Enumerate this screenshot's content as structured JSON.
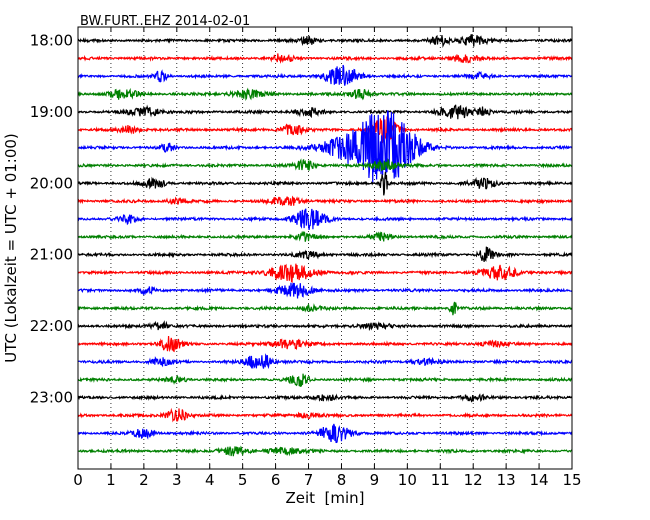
{
  "chart_data": {
    "type": "line",
    "title": "BW.FURT..EHZ 2014-02-01",
    "xlabel": "Zeit  [min]",
    "ylabel": "UTC (Lokalzeit = UTC + 01:00)",
    "xlim": [
      0,
      15
    ],
    "x_ticks": [
      "0",
      "1",
      "2",
      "3",
      "4",
      "5",
      "6",
      "7",
      "8",
      "9",
      "10",
      "11",
      "12",
      "13",
      "14",
      "15"
    ],
    "y_ticks": [
      "18:00",
      "19:00",
      "20:00",
      "21:00",
      "22:00",
      "23:00"
    ],
    "grid": "vertical-dotted",
    "trace_colors": [
      "#000000",
      "#ff0000",
      "#0000ff",
      "#008000"
    ],
    "trace_interval_min": 15,
    "traces": [
      {
        "start": "18:00",
        "bursts": [
          {
            "t": 11.0,
            "a": 0.5,
            "w": 0.3
          },
          {
            "t": 12.0,
            "a": 0.6,
            "w": 0.4
          },
          {
            "t": 7.0,
            "a": 0.4,
            "w": 0.3
          }
        ]
      },
      {
        "start": "18:15",
        "bursts": [
          {
            "t": 6.2,
            "a": 0.5,
            "w": 0.3
          },
          {
            "t": 11.7,
            "a": 0.4,
            "w": 0.4
          }
        ]
      },
      {
        "start": "18:30",
        "bursts": [
          {
            "t": 2.5,
            "a": 0.6,
            "w": 0.2
          },
          {
            "t": 8.0,
            "a": 1.1,
            "w": 0.5
          },
          {
            "t": 12.2,
            "a": 0.3,
            "w": 0.3
          }
        ]
      },
      {
        "start": "18:45",
        "bursts": [
          {
            "t": 1.4,
            "a": 0.6,
            "w": 0.4
          },
          {
            "t": 5.2,
            "a": 0.5,
            "w": 0.5
          },
          {
            "t": 8.6,
            "a": 0.6,
            "w": 0.3
          }
        ]
      },
      {
        "start": "19:00",
        "bursts": [
          {
            "t": 2.0,
            "a": 0.5,
            "w": 0.5
          },
          {
            "t": 7.0,
            "a": 0.4,
            "w": 0.4
          },
          {
            "t": 11.5,
            "a": 0.7,
            "w": 0.5
          },
          {
            "t": 12.3,
            "a": 0.6,
            "w": 0.2
          }
        ]
      },
      {
        "start": "19:15",
        "bursts": [
          {
            "t": 1.6,
            "a": 0.5,
            "w": 0.3
          },
          {
            "t": 6.5,
            "a": 0.7,
            "w": 0.3
          },
          {
            "t": 9.3,
            "a": 1.4,
            "w": 0.4
          }
        ]
      },
      {
        "start": "19:30",
        "bursts": [
          {
            "t": 9.3,
            "a": 4.2,
            "w": 0.9
          },
          {
            "t": 8.0,
            "a": 0.8,
            "w": 0.8
          },
          {
            "t": 2.7,
            "a": 0.5,
            "w": 0.2
          }
        ]
      },
      {
        "start": "19:45",
        "bursts": [
          {
            "t": 6.9,
            "a": 0.6,
            "w": 0.3
          },
          {
            "t": 9.3,
            "a": 0.6,
            "w": 0.4
          }
        ]
      },
      {
        "start": "20:00",
        "bursts": [
          {
            "t": 9.3,
            "a": 2.0,
            "w": 0.1
          },
          {
            "t": 2.3,
            "a": 0.6,
            "w": 0.3
          },
          {
            "t": 12.3,
            "a": 0.5,
            "w": 0.4
          }
        ]
      },
      {
        "start": "20:15",
        "bursts": [
          {
            "t": 6.3,
            "a": 0.6,
            "w": 0.4
          },
          {
            "t": 3.0,
            "a": 0.3,
            "w": 0.3
          }
        ]
      },
      {
        "start": "20:30",
        "bursts": [
          {
            "t": 7.0,
            "a": 1.1,
            "w": 0.5
          },
          {
            "t": 1.5,
            "a": 0.4,
            "w": 0.3
          }
        ]
      },
      {
        "start": "20:45",
        "bursts": [
          {
            "t": 6.9,
            "a": 0.4,
            "w": 0.3
          },
          {
            "t": 9.2,
            "a": 0.4,
            "w": 0.3
          }
        ]
      },
      {
        "start": "21:00",
        "bursts": [
          {
            "t": 12.4,
            "a": 0.9,
            "w": 0.2
          },
          {
            "t": 7.0,
            "a": 0.3,
            "w": 0.4
          }
        ]
      },
      {
        "start": "21:15",
        "bursts": [
          {
            "t": 6.5,
            "a": 0.9,
            "w": 0.7
          },
          {
            "t": 12.8,
            "a": 0.8,
            "w": 0.5
          }
        ]
      },
      {
        "start": "21:30",
        "bursts": [
          {
            "t": 6.6,
            "a": 0.8,
            "w": 0.5
          },
          {
            "t": 2.1,
            "a": 0.5,
            "w": 0.2
          }
        ]
      },
      {
        "start": "21:45",
        "bursts": [
          {
            "t": 11.4,
            "a": 0.8,
            "w": 0.1
          },
          {
            "t": 7.1,
            "a": 0.4,
            "w": 0.3
          }
        ]
      },
      {
        "start": "22:00",
        "bursts": [
          {
            "t": 2.5,
            "a": 0.4,
            "w": 0.3
          },
          {
            "t": 9.0,
            "a": 0.3,
            "w": 0.5
          }
        ]
      },
      {
        "start": "22:15",
        "bursts": [
          {
            "t": 2.8,
            "a": 0.9,
            "w": 0.3
          },
          {
            "t": 6.4,
            "a": 0.5,
            "w": 0.5
          },
          {
            "t": 12.6,
            "a": 0.3,
            "w": 0.4
          }
        ]
      },
      {
        "start": "22:30",
        "bursts": [
          {
            "t": 5.5,
            "a": 1.0,
            "w": 0.4
          },
          {
            "t": 2.5,
            "a": 0.4,
            "w": 0.3
          },
          {
            "t": 10.5,
            "a": 0.3,
            "w": 0.4
          }
        ]
      },
      {
        "start": "22:45",
        "bursts": [
          {
            "t": 6.7,
            "a": 0.7,
            "w": 0.3
          },
          {
            "t": 3.0,
            "a": 0.3,
            "w": 0.3
          }
        ]
      },
      {
        "start": "23:00",
        "bursts": [
          {
            "t": 7.5,
            "a": 0.4,
            "w": 0.3
          },
          {
            "t": 12.0,
            "a": 0.3,
            "w": 0.4
          }
        ]
      },
      {
        "start": "23:15",
        "bursts": [
          {
            "t": 3.0,
            "a": 0.8,
            "w": 0.3
          },
          {
            "t": 7.0,
            "a": 0.3,
            "w": 0.4
          }
        ]
      },
      {
        "start": "23:30",
        "bursts": [
          {
            "t": 7.8,
            "a": 0.9,
            "w": 0.5
          },
          {
            "t": 2.0,
            "a": 0.5,
            "w": 0.3
          }
        ]
      },
      {
        "start": "23:45",
        "bursts": [
          {
            "t": 4.7,
            "a": 0.5,
            "w": 0.4
          },
          {
            "t": 6.3,
            "a": 0.4,
            "w": 0.5
          }
        ]
      }
    ]
  }
}
